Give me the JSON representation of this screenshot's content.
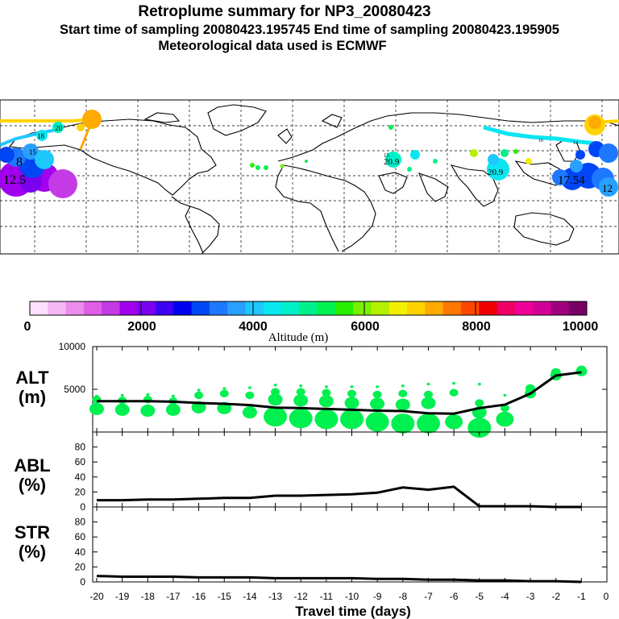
{
  "title": {
    "line1": "Retroplume summary for NP3_20080423",
    "line2": "Start time of sampling 20080423.195745     End time of sampling 20080423.195905",
    "line3": "Meteorological data used is ECMWF"
  },
  "colorbar": {
    "colors": [
      "#fde0fd",
      "#f5b8f5",
      "#ee8cee",
      "#e05ee6",
      "#c43be6",
      "#a100ee",
      "#7a00f0",
      "#3d00f0",
      "#0000ee",
      "#0046f5",
      "#1e78ff",
      "#28a0ff",
      "#1ec8ff",
      "#0ae6f0",
      "#00f0c8",
      "#00f08c",
      "#00f050",
      "#28f000",
      "#78f000",
      "#b4f000",
      "#f0f000",
      "#ffd200",
      "#ffaa00",
      "#ff7800",
      "#ff4600",
      "#ee0000",
      "#ee0064",
      "#ee0096",
      "#d20096",
      "#a0007d",
      "#780064"
    ],
    "tick_labels": [
      "0",
      "2000",
      "4000",
      "6000",
      "8000",
      "10000"
    ],
    "label": "Altitude  (m)",
    "range": [
      0,
      10000
    ]
  },
  "map": {
    "label_20": "20",
    "label_18": "18",
    "label_15a": "15",
    "label_16": "16",
    "label_14": "14",
    "label_15b": "15",
    "label_2_09": "20.9",
    "label_20_9": "20.9",
    "label_12_5": "12.5",
    "label_17_54": "17.54",
    "label_8": "8",
    "label_12": "12"
  },
  "chart_data": [
    {
      "type": "line",
      "panel": "ALT",
      "ylabel": "ALT\n(m)",
      "ylabel_lines": [
        "ALT",
        "(m)"
      ],
      "ylim": [
        0,
        10000
      ],
      "yticks": [
        "5000",
        "10000"
      ],
      "x": [
        -20,
        -19,
        -18,
        -17,
        -16,
        -15,
        -14,
        -13,
        -12,
        -11,
        -10,
        -9,
        -8,
        -7,
        -6,
        -5,
        -4,
        -3,
        -2,
        -1
      ],
      "values": [
        3600,
        3600,
        3600,
        3550,
        3400,
        3300,
        3150,
        2850,
        2800,
        2700,
        2600,
        2500,
        2450,
        2200,
        2150,
        2800,
        3200,
        4500,
        6600,
        7000
      ],
      "plume_scatter": [
        {
          "x": -20,
          "y": [
            4200,
            3800,
            2700
          ]
        },
        {
          "x": -19,
          "y": [
            4300,
            3700,
            2600
          ]
        },
        {
          "x": -18,
          "y": [
            4400,
            3800,
            2500
          ]
        },
        {
          "x": -17,
          "y": [
            4200,
            3600,
            2600
          ]
        },
        {
          "x": -16,
          "y": [
            4900,
            4300,
            2900
          ]
        },
        {
          "x": -15,
          "y": [
            5100,
            4500,
            2800
          ]
        },
        {
          "x": -14,
          "y": [
            5200,
            4300,
            2300
          ]
        },
        {
          "x": -13,
          "y": [
            5500,
            4700,
            3800,
            1800
          ]
        },
        {
          "x": -12,
          "y": [
            5400,
            4700,
            3700,
            1600
          ]
        },
        {
          "x": -11,
          "y": [
            5300,
            4600,
            3600,
            1500
          ]
        },
        {
          "x": -10,
          "y": [
            5300,
            4500,
            3400,
            1500
          ]
        },
        {
          "x": -9,
          "y": [
            5300,
            4400,
            3300,
            1200
          ]
        },
        {
          "x": -8,
          "y": [
            5400,
            4500,
            3200,
            1000
          ]
        },
        {
          "x": -7,
          "y": [
            5600,
            4400,
            3400,
            1000
          ]
        },
        {
          "x": -6,
          "y": [
            5700,
            4600,
            1200
          ]
        },
        {
          "x": -5,
          "y": [
            5600,
            3400,
            2300,
            500
          ]
        },
        {
          "x": -4,
          "y": [
            4300,
            2800,
            1500
          ]
        },
        {
          "x": -3,
          "y": [
            5100,
            4500
          ]
        },
        {
          "x": -2,
          "y": [
            7000,
            6600
          ]
        },
        {
          "x": -1,
          "y": [
            7300,
            7100
          ]
        }
      ]
    },
    {
      "type": "line",
      "panel": "ABL",
      "ylabel_lines": [
        "ABL",
        "(%)"
      ],
      "ylim": [
        0,
        100
      ],
      "yticks": [
        "0",
        "20",
        "40",
        "60",
        "80"
      ],
      "x": [
        -20,
        -19,
        -18,
        -17,
        -16,
        -15,
        -14,
        -13,
        -12,
        -11,
        -10,
        -9,
        -8,
        -7,
        -6,
        -5,
        -4,
        -3,
        -2,
        -1
      ],
      "values": [
        9,
        9,
        10,
        10,
        11,
        12,
        12,
        15,
        15,
        16,
        17,
        19,
        26,
        23,
        27,
        1,
        1,
        1,
        0,
        0
      ]
    },
    {
      "type": "line",
      "panel": "STR",
      "ylabel_lines": [
        "STR",
        "(%)"
      ],
      "ylim": [
        0,
        100
      ],
      "yticks": [
        "0",
        "20",
        "40",
        "60",
        "80"
      ],
      "x": [
        -20,
        -19,
        -18,
        -17,
        -16,
        -15,
        -14,
        -13,
        -12,
        -11,
        -10,
        -9,
        -8,
        -7,
        -6,
        -5,
        -4,
        -3,
        -2,
        -1
      ],
      "values": [
        8,
        7,
        7,
        7,
        6,
        6,
        6,
        5,
        5,
        5,
        5,
        4,
        4,
        3,
        3,
        2,
        2,
        1,
        1,
        0
      ],
      "xlabel": "Travel time (days)",
      "xticks": [
        "-20",
        "-19",
        "-18",
        "-17",
        "-16",
        "-15",
        "-14",
        "-13",
        "-12",
        "-11",
        "-10",
        "-9",
        "-8",
        "-7",
        "-6",
        "-5",
        "-4",
        "-3",
        "-2",
        "-1",
        "0"
      ]
    }
  ]
}
